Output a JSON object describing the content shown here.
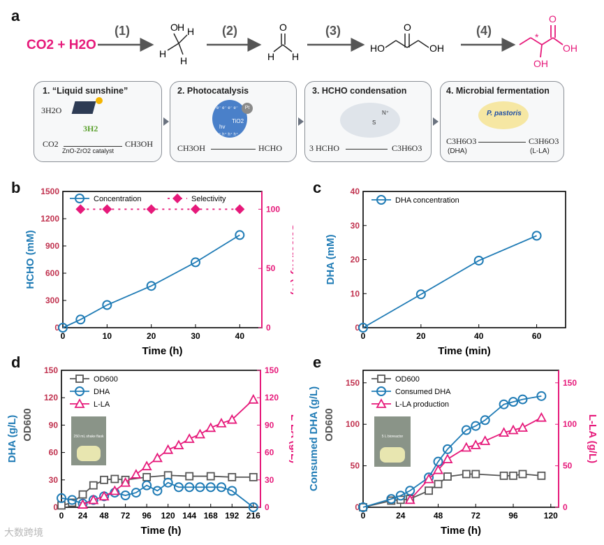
{
  "panel_labels": {
    "a": "a",
    "b": "b",
    "c": "c",
    "d": "d",
    "e": "e"
  },
  "scheme": {
    "reactants": "CO2 + H2O",
    "steps": [
      "(1)",
      "(2)",
      "(3)",
      "(4)"
    ],
    "mol_labels": {
      "H": "H",
      "O": "O",
      "OH": "OH",
      "HO": "HO"
    },
    "boxes": [
      {
        "title": "1. “Liquid sunshine”",
        "line1": "3H2O",
        "line2": "3H2",
        "line3_left": "CO2",
        "catalyst": "ZnO-ZrO2 catalyst",
        "line3_right": "CH3OH"
      },
      {
        "title": "2. Photocatalysis",
        "left": "CH3OH",
        "right": "HCHO",
        "tio2": "TiO2",
        "pt": "Pt",
        "hv": "hv",
        "e": "e⁻ e⁻ e⁻ e⁻",
        "h": "h⁺ h⁺ h⁺ h⁺"
      },
      {
        "title": "3. HCHO condensation",
        "left": "3 HCHO",
        "right": "C3H6O3",
        "s": "S",
        "n": "N⁺"
      },
      {
        "title": "4. Microbial fermentation",
        "organism": "P. pastoris",
        "left": "C3H6O3",
        "left_sub": "(DHA)",
        "right": "C3H6O3",
        "right_sub": "(L-LA)"
      }
    ]
  },
  "colors": {
    "blue": "#1f7bb5",
    "magenta": "#e6197a",
    "gray": "#555555"
  },
  "chart_data": [
    {
      "panel": "b",
      "type": "line",
      "xlabel": "Time (h)",
      "ylabel": "HCHO (mM)",
      "y2label": "Selectivity (%)",
      "xlim": [
        0,
        45
      ],
      "ylim": [
        0,
        1500
      ],
      "y2lim": [
        0,
        115
      ],
      "xticks": [
        0,
        10,
        20,
        30,
        40
      ],
      "yticks": [
        0,
        300,
        600,
        900,
        1200,
        1500
      ],
      "y2ticks": [
        0,
        50,
        100
      ],
      "series": [
        {
          "name": "Concentration",
          "axis": "left",
          "x": [
            0,
            4,
            10,
            20,
            30,
            40
          ],
          "y": [
            0,
            90,
            250,
            460,
            720,
            1020
          ]
        },
        {
          "name": "Selectivity",
          "axis": "right",
          "x": [
            4,
            10,
            20,
            30,
            40
          ],
          "y": [
            100,
            100,
            100,
            100,
            100
          ]
        }
      ]
    },
    {
      "panel": "c",
      "type": "line",
      "xlabel": "Time (min)",
      "ylabel": "DHA (mM)",
      "xlim": [
        0,
        70
      ],
      "ylim": [
        0,
        40
      ],
      "xticks": [
        0,
        20,
        40,
        60
      ],
      "yticks": [
        0,
        10,
        20,
        30,
        40
      ],
      "series": [
        {
          "name": "DHA concentration",
          "axis": "left",
          "x": [
            0,
            20,
            40,
            60
          ],
          "y": [
            0,
            9.8,
            19.7,
            27
          ]
        }
      ]
    },
    {
      "panel": "d",
      "type": "line",
      "xlabel": "Time (h)",
      "ylabel": "DHA (g/L)",
      "ylabel2": "OD600",
      "y2label": "L-LA (g/L)",
      "xlim": [
        0,
        224
      ],
      "ylim": [
        0,
        150
      ],
      "y2lim": [
        0,
        150
      ],
      "xticks": [
        0,
        24,
        48,
        72,
        96,
        120,
        144,
        168,
        192,
        216
      ],
      "yticks": [
        0,
        30,
        60,
        90,
        120,
        150
      ],
      "y2ticks": [
        0,
        30,
        60,
        90,
        120,
        150
      ],
      "inset": "250 mL shake flask",
      "series": [
        {
          "name": "OD600",
          "axis": "left",
          "x": [
            0,
            12,
            24,
            36,
            48,
            60,
            72,
            96,
            120,
            144,
            168,
            192,
            216
          ],
          "y": [
            2,
            5,
            14,
            24,
            30,
            31,
            30,
            33,
            35,
            34,
            34,
            33,
            33
          ]
        },
        {
          "name": "DHA",
          "axis": "left",
          "x": [
            0,
            12,
            24,
            36,
            48,
            60,
            72,
            84,
            96,
            108,
            120,
            132,
            144,
            156,
            168,
            180,
            192,
            216
          ],
          "y": [
            10,
            8,
            4,
            8,
            12,
            16,
            13,
            16,
            24,
            18,
            27,
            22,
            22,
            22,
            22,
            22,
            18,
            0
          ]
        },
        {
          "name": "L-LA",
          "axis": "right",
          "x": [
            24,
            36,
            48,
            60,
            72,
            84,
            96,
            108,
            120,
            132,
            144,
            156,
            168,
            180,
            192,
            216
          ],
          "y": [
            3,
            8,
            12,
            18,
            27,
            36,
            45,
            54,
            63,
            68,
            75,
            80,
            87,
            92,
            96,
            118
          ]
        }
      ]
    },
    {
      "panel": "e",
      "type": "line",
      "xlabel": "Time (h)",
      "ylabel": "Consumed DHA (g/L)",
      "ylabel2": "OD600",
      "y2label": "L-LA (g/L)",
      "xlim": [
        0,
        125
      ],
      "ylim": [
        0,
        165
      ],
      "y2lim": [
        0,
        165
      ],
      "xticks": [
        0,
        24,
        48,
        72,
        96,
        120
      ],
      "yticks": [
        0,
        50,
        100,
        150
      ],
      "y2ticks": [
        0,
        50,
        100,
        150
      ],
      "inset": "5 L bioreactor",
      "series": [
        {
          "name": "OD600",
          "axis": "left",
          "x": [
            0,
            18,
            24,
            30,
            42,
            48,
            54,
            66,
            72,
            90,
            96,
            102,
            114
          ],
          "y": [
            0,
            8,
            9,
            10,
            20,
            28,
            37,
            40,
            40,
            38,
            38,
            40,
            38
          ]
        },
        {
          "name": "Consumed DHA",
          "axis": "left",
          "x": [
            0,
            18,
            24,
            30,
            42,
            48,
            54,
            66,
            72,
            78,
            90,
            96,
            102,
            114
          ],
          "y": [
            0,
            10,
            14,
            20,
            36,
            55,
            70,
            93,
            98,
            105,
            124,
            127,
            130,
            134
          ]
        },
        {
          "name": "L-LA production",
          "axis": "right",
          "x": [
            30,
            42,
            48,
            54,
            66,
            72,
            78,
            90,
            96,
            102,
            114
          ],
          "y": [
            9,
            34,
            45,
            58,
            72,
            75,
            80,
            90,
            93,
            96,
            108
          ]
        }
      ]
    }
  ],
  "watermark": "大数跨境"
}
